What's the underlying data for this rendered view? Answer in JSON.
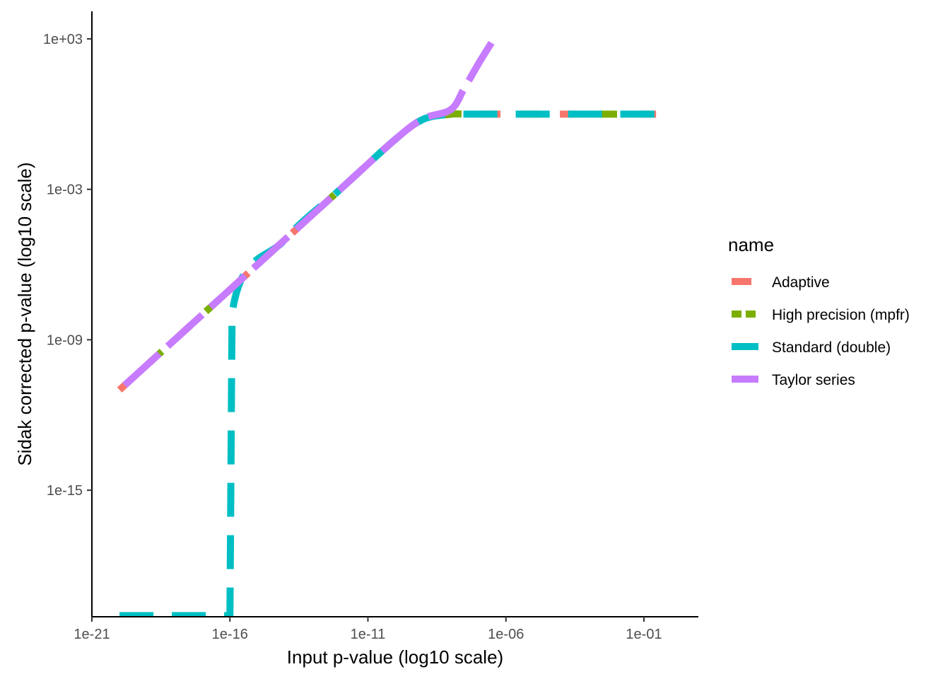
{
  "chart_data": {
    "type": "line",
    "xlabel": "Input p-value (log10 scale)",
    "ylabel": "Sidak corrected p-value (log10 scale)",
    "x_scale": "log10",
    "y_scale": "log10",
    "xlim": [
      "1e-21",
      "1e+00"
    ],
    "ylim": [
      "1e-20",
      "1e+04"
    ],
    "x_ticks": [
      "1e-21",
      "1e-16",
      "1e-11",
      "1e-06",
      "1e-01"
    ],
    "y_ticks": [
      "1e+03",
      "1e-03",
      "1e-09",
      "1e-15"
    ],
    "grid": false,
    "legend": {
      "title": "name",
      "position": "right"
    },
    "series": [
      {
        "name": "Adaptive",
        "color": "#F8766D",
        "x": [
          1e-20,
          1e-18,
          1e-16,
          1e-14,
          1e-12,
          1e-10,
          1e-09,
          1e-08,
          3e-08,
          1e-07,
          1e-06,
          0.0001,
          0.01,
          1
        ],
        "y": [
          1e-11,
          1e-09,
          1e-07,
          1e-05,
          0.001,
          0.1,
          0.62,
          0.99,
          1,
          1,
          1,
          1,
          1,
          1
        ]
      },
      {
        "name": "High precision (mpfr)",
        "color": "#7CAE00",
        "x": [
          1e-20,
          1e-18,
          1e-16,
          1e-14,
          1e-12,
          1e-10,
          1e-09,
          1e-08,
          3e-08,
          1e-07,
          1e-06,
          0.0001,
          0.01,
          1
        ],
        "y": [
          1e-11,
          1e-09,
          1e-07,
          1e-05,
          0.001,
          0.1,
          0.62,
          0.99,
          1,
          1,
          1,
          1,
          1,
          1
        ]
      },
      {
        "name": "Standard (double)",
        "color": "#00BFC4",
        "x": [
          1e-20,
          5e-17,
          1e-16,
          1.2e-16,
          1e-14,
          1e-12,
          1e-10,
          1e-09,
          1e-08,
          3e-08,
          1e-07,
          1e-06,
          0.0001,
          0.01,
          1
        ],
        "y": [
          1e-20,
          1e-20,
          1e-20,
          1.1e-08,
          1e-05,
          0.001,
          0.1,
          0.62,
          0.99,
          1,
          1,
          1,
          1,
          1,
          1
        ]
      },
      {
        "name": "Taylor series",
        "color": "#C77CFF",
        "x": [
          1e-20,
          1e-18,
          1e-16,
          1e-14,
          1e-12,
          1e-10,
          1e-09,
          1e-08,
          3e-08,
          1e-07,
          3e-07
        ],
        "y": [
          1e-11,
          1e-09,
          1e-07,
          1e-05,
          0.001,
          0.1,
          0.65,
          1.5,
          10,
          100,
          700
        ]
      }
    ]
  }
}
